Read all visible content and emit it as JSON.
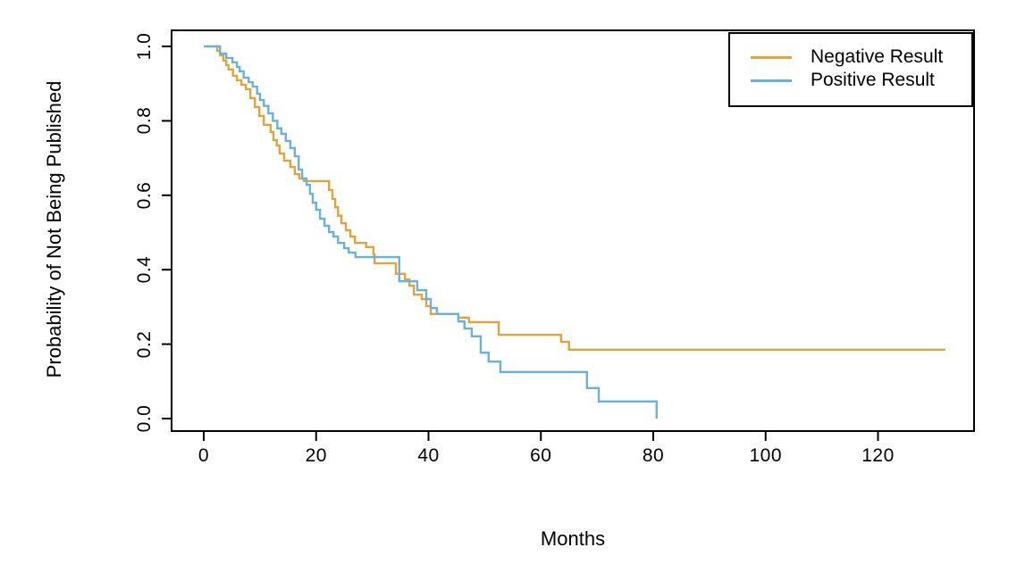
{
  "chart_data": {
    "type": "line",
    "plot_style": "kaplan-meier-step",
    "title": "",
    "xlabel": "Months",
    "ylabel": "Probability of Not Being Published",
    "xlim": [
      0,
      132
    ],
    "ylim": [
      0.0,
      1.0
    ],
    "xticks": [
      0,
      20,
      40,
      60,
      80,
      100,
      120
    ],
    "yticks": [
      "0.0",
      "0.2",
      "0.4",
      "0.6",
      "0.8",
      "1.0"
    ],
    "grid": false,
    "legend_position": "top-right",
    "axis_color": "#000000",
    "background_color": "#ffffff",
    "series": [
      {
        "name": "Negative Result",
        "color": "#E2A33C",
        "points": [
          [
            0.6,
            1.0
          ],
          [
            2.4,
            0.988
          ],
          [
            2.9,
            0.976
          ],
          [
            3.5,
            0.962
          ],
          [
            4.0,
            0.95
          ],
          [
            4.4,
            0.938
          ],
          [
            5.2,
            0.921
          ],
          [
            5.9,
            0.909
          ],
          [
            6.7,
            0.897
          ],
          [
            7.5,
            0.885
          ],
          [
            8.3,
            0.861
          ],
          [
            9.1,
            0.837
          ],
          [
            9.9,
            0.813
          ],
          [
            10.7,
            0.789
          ],
          [
            11.9,
            0.77
          ],
          [
            12.4,
            0.748
          ],
          [
            13.0,
            0.734
          ],
          [
            13.5,
            0.712
          ],
          [
            14.3,
            0.693
          ],
          [
            15.4,
            0.676
          ],
          [
            16.2,
            0.657
          ],
          [
            17.0,
            0.645
          ],
          [
            17.8,
            0.638
          ],
          [
            22.3,
            0.614
          ],
          [
            22.9,
            0.59
          ],
          [
            23.4,
            0.568
          ],
          [
            23.9,
            0.545
          ],
          [
            24.5,
            0.525
          ],
          [
            25.3,
            0.506
          ],
          [
            26.1,
            0.489
          ],
          [
            26.9,
            0.472
          ],
          [
            28.9,
            0.461
          ],
          [
            30.2,
            0.441
          ],
          [
            30.4,
            0.417
          ],
          [
            34.2,
            0.389
          ],
          [
            35.8,
            0.374
          ],
          [
            36.6,
            0.357
          ],
          [
            37.4,
            0.333
          ],
          [
            38.8,
            0.321
          ],
          [
            39.6,
            0.302
          ],
          [
            40.4,
            0.281
          ],
          [
            45.3,
            0.271
          ],
          [
            47.2,
            0.259
          ],
          [
            52.5,
            0.225
          ],
          [
            63.6,
            0.206
          ],
          [
            65.0,
            0.185
          ],
          [
            132.0,
            0.185
          ]
        ]
      },
      {
        "name": "Positive Result",
        "color": "#6AB2DA",
        "points": [
          [
            0.0,
            1.0
          ],
          [
            2.9,
            0.981
          ],
          [
            4.0,
            0.969
          ],
          [
            5.1,
            0.957
          ],
          [
            5.9,
            0.945
          ],
          [
            6.4,
            0.933
          ],
          [
            7.1,
            0.916
          ],
          [
            8.0,
            0.904
          ],
          [
            8.7,
            0.892
          ],
          [
            9.5,
            0.873
          ],
          [
            10.0,
            0.856
          ],
          [
            10.7,
            0.84
          ],
          [
            11.5,
            0.82
          ],
          [
            12.3,
            0.8
          ],
          [
            13.1,
            0.78
          ],
          [
            13.8,
            0.765
          ],
          [
            14.6,
            0.746
          ],
          [
            15.4,
            0.727
          ],
          [
            16.2,
            0.705
          ],
          [
            16.9,
            0.669
          ],
          [
            17.5,
            0.645
          ],
          [
            18.3,
            0.628
          ],
          [
            18.9,
            0.604
          ],
          [
            19.4,
            0.58
          ],
          [
            20.0,
            0.561
          ],
          [
            20.7,
            0.537
          ],
          [
            21.5,
            0.518
          ],
          [
            22.3,
            0.501
          ],
          [
            23.1,
            0.489
          ],
          [
            23.9,
            0.472
          ],
          [
            25.0,
            0.458
          ],
          [
            25.8,
            0.446
          ],
          [
            27.0,
            0.434
          ],
          [
            34.8,
            0.369
          ],
          [
            38.0,
            0.345
          ],
          [
            39.6,
            0.321
          ],
          [
            40.4,
            0.297
          ],
          [
            41.5,
            0.281
          ],
          [
            45.3,
            0.261
          ],
          [
            46.4,
            0.242
          ],
          [
            47.7,
            0.221
          ],
          [
            49.3,
            0.177
          ],
          [
            50.7,
            0.153
          ],
          [
            52.8,
            0.125
          ],
          [
            68.2,
            0.082
          ],
          [
            70.3,
            0.046
          ],
          [
            80.6,
            0.0
          ]
        ]
      }
    ]
  }
}
